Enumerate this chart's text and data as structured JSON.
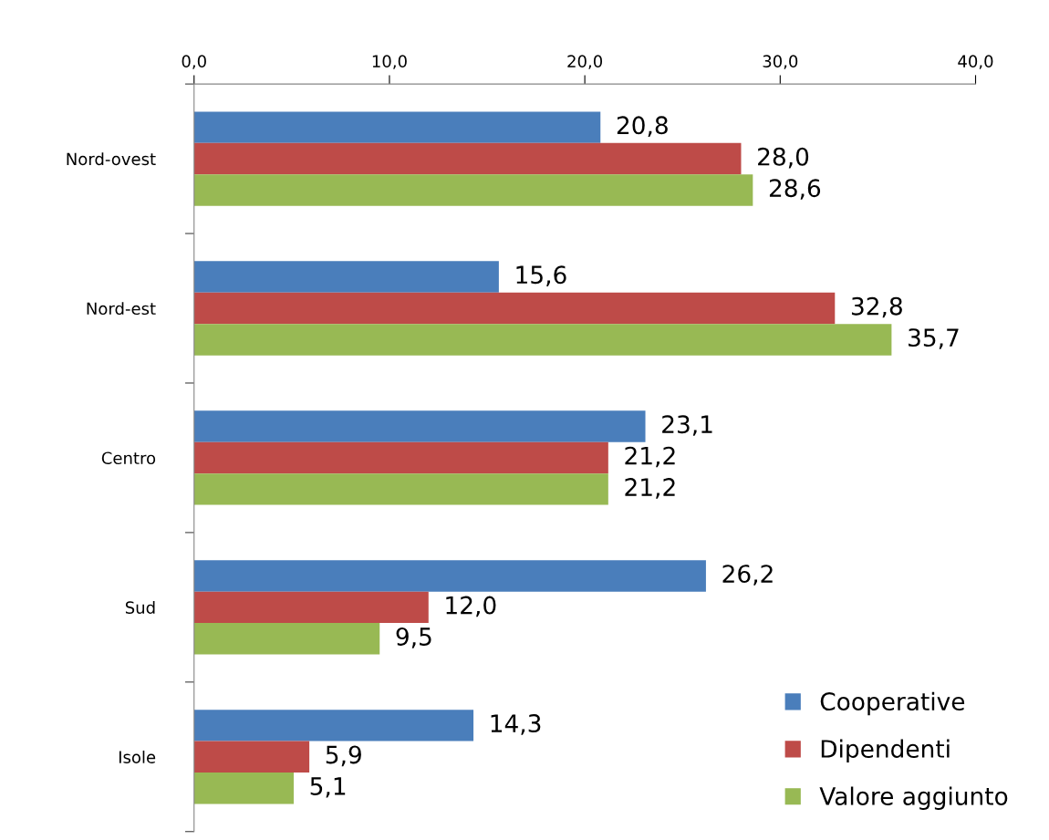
{
  "chart_data": {
    "type": "bar",
    "orientation": "horizontal",
    "categories": [
      "Nord-ovest",
      "Nord-est",
      "Centro",
      "Sud",
      "Isole"
    ],
    "series": [
      {
        "name": "Cooperative",
        "color": "#4a7ebb",
        "values": [
          20.8,
          15.6,
          23.1,
          26.2,
          14.3
        ],
        "value_labels": [
          "20,8",
          "15,6",
          "23,1",
          "26,2",
          "14,3"
        ]
      },
      {
        "name": "Dipendenti",
        "color": "#be4b48",
        "values": [
          28.0,
          32.8,
          21.2,
          12.0,
          5.9
        ],
        "value_labels": [
          "28,0",
          "32,8",
          "21,2",
          "12,0",
          "5,9"
        ]
      },
      {
        "name": "Valore aggiunto",
        "color": "#98b954",
        "values": [
          28.6,
          35.7,
          21.2,
          9.5,
          5.1
        ],
        "value_labels": [
          "28,6",
          "35,7",
          "21,2",
          "9,5",
          "5,1"
        ]
      }
    ],
    "xlim": [
      0,
      40
    ],
    "xticks": [
      {
        "value": 0,
        "label": "0,0"
      },
      {
        "value": 10,
        "label": "10,0"
      },
      {
        "value": 20,
        "label": "20,0"
      },
      {
        "value": 30,
        "label": "30,0"
      },
      {
        "value": 40,
        "label": "40,0"
      }
    ],
    "grid": false,
    "legend": "bottom right"
  }
}
